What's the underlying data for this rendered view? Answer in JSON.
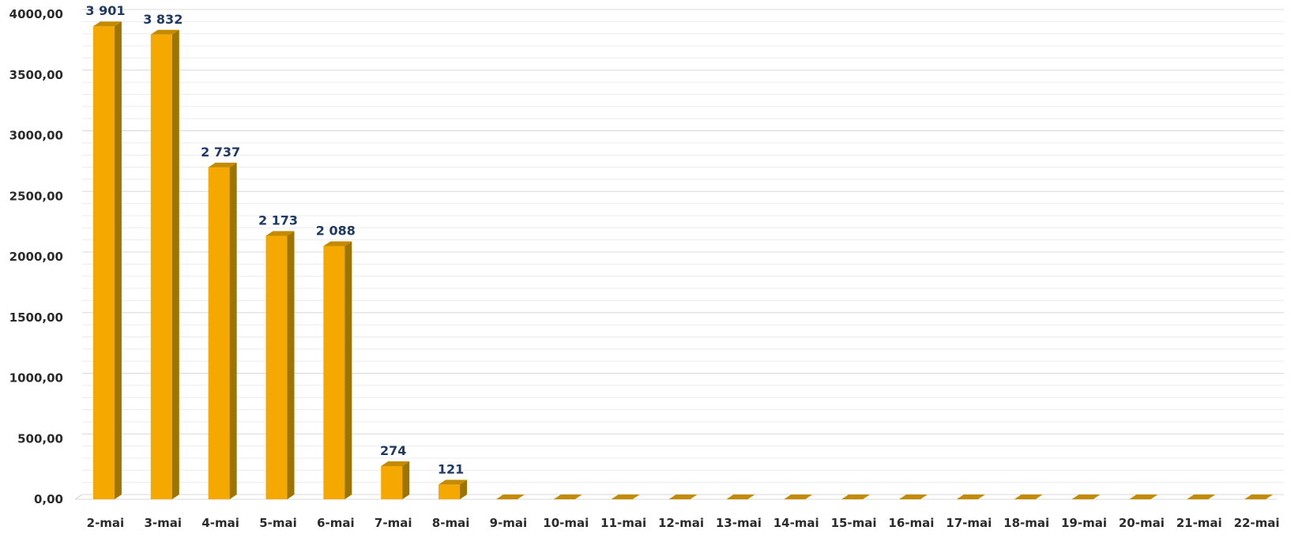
{
  "chart_data": {
    "type": "bar",
    "categories": [
      "2-mai",
      "3-mai",
      "4-mai",
      "5-mai",
      "6-mai",
      "7-mai",
      "8-mai",
      "9-mai",
      "10-mai",
      "11-mai",
      "12-mai",
      "13-mai",
      "14-mai",
      "15-mai",
      "16-mai",
      "17-mai",
      "18-mai",
      "19-mai",
      "20-mai",
      "21-mai",
      "22-mai"
    ],
    "values": [
      3901,
      3832,
      2737,
      2173,
      2088,
      274,
      121,
      0,
      0,
      0,
      0,
      0,
      0,
      0,
      0,
      0,
      0,
      0,
      0,
      0,
      0
    ],
    "data_labels": [
      "3 901",
      "3 832",
      "2 737",
      "2 173",
      "2 088",
      "274",
      "121",
      "",
      "",
      "",
      "",
      "",
      "",
      "",
      "",
      "",
      "",
      "",
      "",
      "",
      ""
    ],
    "yticks": [
      0,
      500,
      1000,
      1500,
      2000,
      2500,
      3000,
      3500,
      4000
    ],
    "ytick_labels": [
      "0,00",
      "500,00",
      "1000,00",
      "1500,00",
      "2000,00",
      "2500,00",
      "3000,00",
      "3500,00",
      "4000,00"
    ],
    "ylim": [
      0,
      4000
    ],
    "grid": true,
    "bar_color": "#F5A800",
    "bar_side_color": "#9E7400",
    "bar_top_color": "#C48A00",
    "data_label_color": "#1F3A64",
    "title": "",
    "xlabel": "",
    "ylabel": ""
  }
}
